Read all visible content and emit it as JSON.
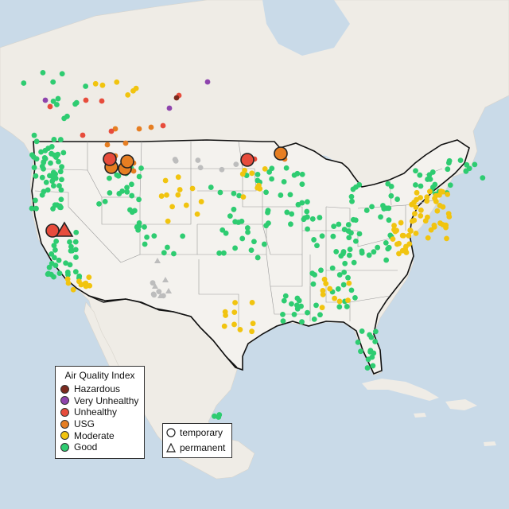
{
  "legend": {
    "title": "Air Quality Index",
    "items": [
      {
        "label": "Hazardous",
        "color": "#7b2a1e"
      },
      {
        "label": "Very Unhealthy",
        "color": "#8e44ad"
      },
      {
        "label": "Unhealthy",
        "color": "#e74c3c"
      },
      {
        "label": "USG",
        "color": "#e67e22"
      },
      {
        "label": "Moderate",
        "color": "#f1c40f"
      },
      {
        "label": "Good",
        "color": "#2ecc71"
      }
    ]
  },
  "monitor_types": {
    "items": [
      {
        "label": "temporary",
        "icon": "circle-icon"
      },
      {
        "label": "permanent",
        "icon": "triangle-icon"
      }
    ]
  },
  "colors": {
    "ocean": "#c9dae8",
    "land": "#efece6",
    "us_land": "#f4f2ee",
    "border": "#111111",
    "state_line": "#9a9a9a",
    "unknown": "#bdbdbd"
  }
}
